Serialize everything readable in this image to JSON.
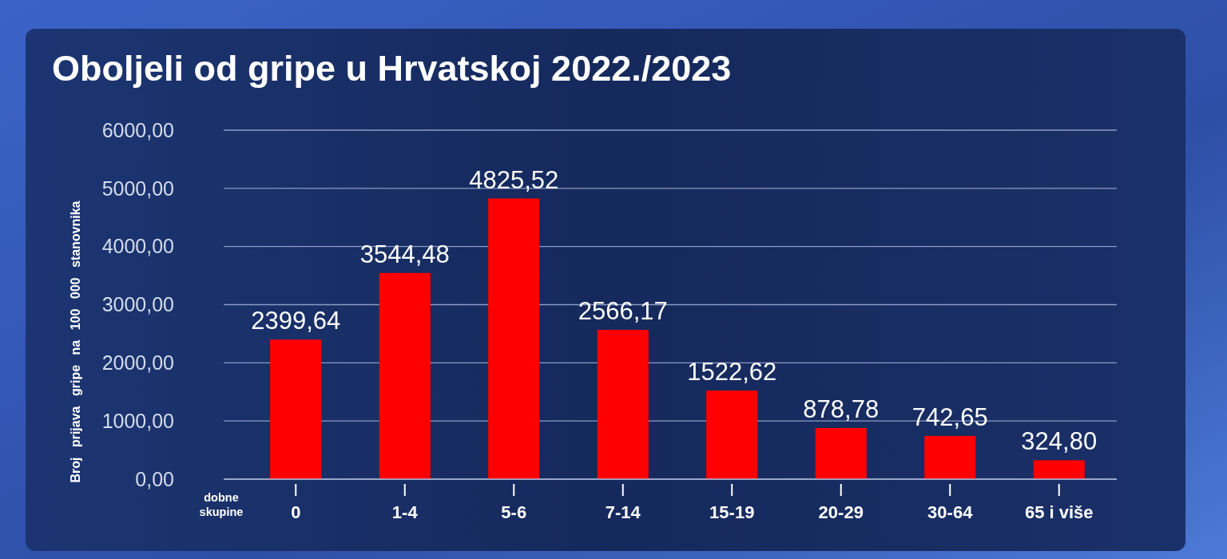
{
  "chart_data": {
    "type": "bar",
    "title": "Oboljeli od gripe u Hrvatskoj 2022./2023",
    "xlabel": "dobne skupine",
    "ylabel": "Broj prijava gripe na 100 000 stanovnika",
    "categories": [
      "0",
      "1-4",
      "5-6",
      "7-14",
      "15-19",
      "20-29",
      "30-64",
      "65 i više"
    ],
    "values": [
      2399.64,
      3544.48,
      4825.52,
      2566.17,
      1522.62,
      878.78,
      742.65,
      324.8
    ],
    "value_labels": [
      "2399,64",
      "3544,48",
      "4825,52",
      "2566,17",
      "1522,62",
      "878,78",
      "742,65",
      "324,80"
    ],
    "color": "#ff0000",
    "ylim": [
      0,
      6000
    ],
    "yticks": [
      {
        "value": 0,
        "label": "0,00"
      },
      {
        "value": 1000,
        "label": "1000,00"
      },
      {
        "value": 2000,
        "label": "2000,00"
      },
      {
        "value": 3000,
        "label": "3000,00"
      },
      {
        "value": 4000,
        "label": "4000,00"
      },
      {
        "value": 5000,
        "label": "5000,00"
      },
      {
        "value": 6000,
        "label": "6000,00"
      }
    ],
    "grid": "y"
  }
}
